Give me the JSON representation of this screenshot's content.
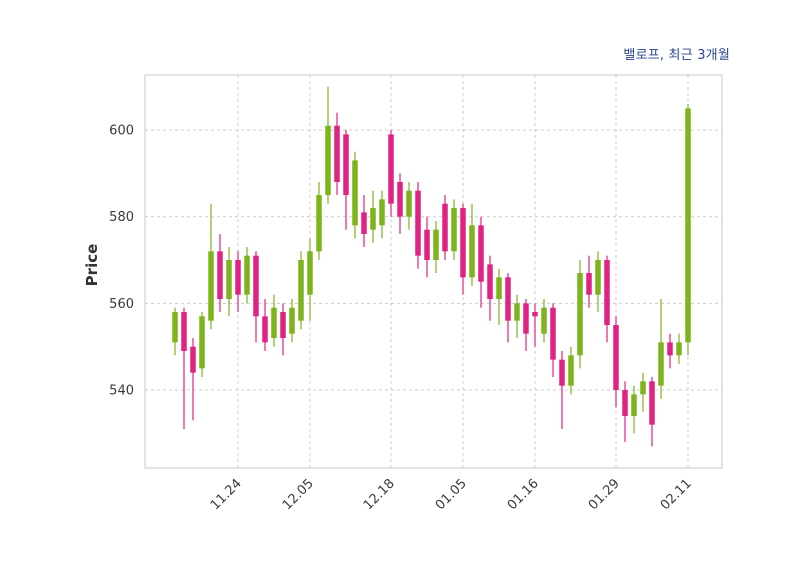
{
  "title": "밸로프, 최근 3개월",
  "y_axis": {
    "label": "Price",
    "ticks": [
      540,
      560,
      580,
      600
    ]
  },
  "x_axis": {
    "tick_labels": [
      "11.24",
      "12.05",
      "12.18",
      "01.05",
      "01.16",
      "01.29",
      "02.11"
    ],
    "tick_indices": [
      7,
      15,
      24,
      32,
      40,
      49,
      57
    ]
  },
  "colors": {
    "up": "#7DB31B",
    "down": "#E02382",
    "grid": "#cccccc",
    "border": "#c8c8c8",
    "tick_text": "#3a3a3a",
    "title_text": "#2b4490",
    "ylabel_text": "#333333"
  },
  "chart_data": {
    "type": "candlestick",
    "title": "밸로프, 최근 3개월",
    "ylabel": "Price",
    "ylim": [
      522,
      612.7
    ],
    "yticks": [
      540,
      560,
      580,
      600
    ],
    "xticks": {
      "labels": [
        "11.24",
        "12.05",
        "12.18",
        "01.05",
        "01.16",
        "01.29",
        "02.11"
      ],
      "candle_indices": [
        7,
        15,
        24,
        32,
        40,
        49,
        57
      ]
    },
    "ohlc_order": [
      "open",
      "high",
      "low",
      "close"
    ],
    "candles": [
      [
        551,
        559,
        548,
        558
      ],
      [
        558,
        559,
        531,
        549
      ],
      [
        550,
        552,
        533,
        544
      ],
      [
        545,
        558,
        543,
        557
      ],
      [
        556,
        583,
        554,
        572
      ],
      [
        572,
        576,
        558,
        561
      ],
      [
        561,
        573,
        557,
        570
      ],
      [
        570,
        572,
        558,
        562
      ],
      [
        562,
        573,
        560,
        571
      ],
      [
        571,
        572,
        551,
        557
      ],
      [
        557,
        561,
        549,
        551
      ],
      [
        552,
        562,
        550,
        559
      ],
      [
        558,
        560,
        548,
        552
      ],
      [
        553,
        561,
        551,
        559
      ],
      [
        556,
        572,
        554,
        570
      ],
      [
        562,
        575,
        556,
        572
      ],
      [
        572,
        588,
        570,
        585
      ],
      [
        585,
        610,
        583,
        601
      ],
      [
        601,
        604,
        585,
        588
      ],
      [
        599,
        600,
        577,
        585
      ],
      [
        578,
        595,
        575,
        593
      ],
      [
        581,
        585,
        573,
        576
      ],
      [
        577,
        586,
        574,
        582
      ],
      [
        578,
        586,
        575,
        584
      ],
      [
        599,
        600,
        580,
        583
      ],
      [
        588,
        590,
        576,
        580
      ],
      [
        580,
        588,
        577,
        586
      ],
      [
        586,
        588,
        568,
        571
      ],
      [
        577,
        580,
        566,
        570
      ],
      [
        570,
        579,
        567,
        577
      ],
      [
        583,
        585,
        570,
        572
      ],
      [
        572,
        584,
        570,
        582
      ],
      [
        582,
        583,
        562,
        566
      ],
      [
        566,
        583,
        564,
        578
      ],
      [
        578,
        580,
        559,
        565
      ],
      [
        569,
        571,
        556,
        561
      ],
      [
        561,
        568,
        555,
        566
      ],
      [
        566,
        567,
        551,
        556
      ],
      [
        556,
        562,
        552,
        560
      ],
      [
        560,
        561,
        549,
        553
      ],
      [
        558,
        560,
        550,
        557
      ],
      [
        553,
        561,
        551,
        559
      ],
      [
        559,
        560,
        543,
        547
      ],
      [
        547,
        549,
        531,
        541
      ],
      [
        541,
        550,
        539,
        548
      ],
      [
        548,
        570,
        545,
        567
      ],
      [
        567,
        571,
        559,
        562
      ],
      [
        562,
        572,
        558,
        570
      ],
      [
        570,
        571,
        551,
        555
      ],
      [
        555,
        557,
        536,
        540
      ],
      [
        540,
        542,
        528,
        534
      ],
      [
        534,
        541,
        530,
        539
      ],
      [
        539,
        544,
        535,
        542
      ],
      [
        542,
        543,
        527,
        532
      ],
      [
        541,
        561,
        538,
        551
      ],
      [
        551,
        553,
        545,
        548
      ],
      [
        548,
        553,
        546,
        551
      ],
      [
        551,
        606,
        548,
        605
      ]
    ]
  }
}
